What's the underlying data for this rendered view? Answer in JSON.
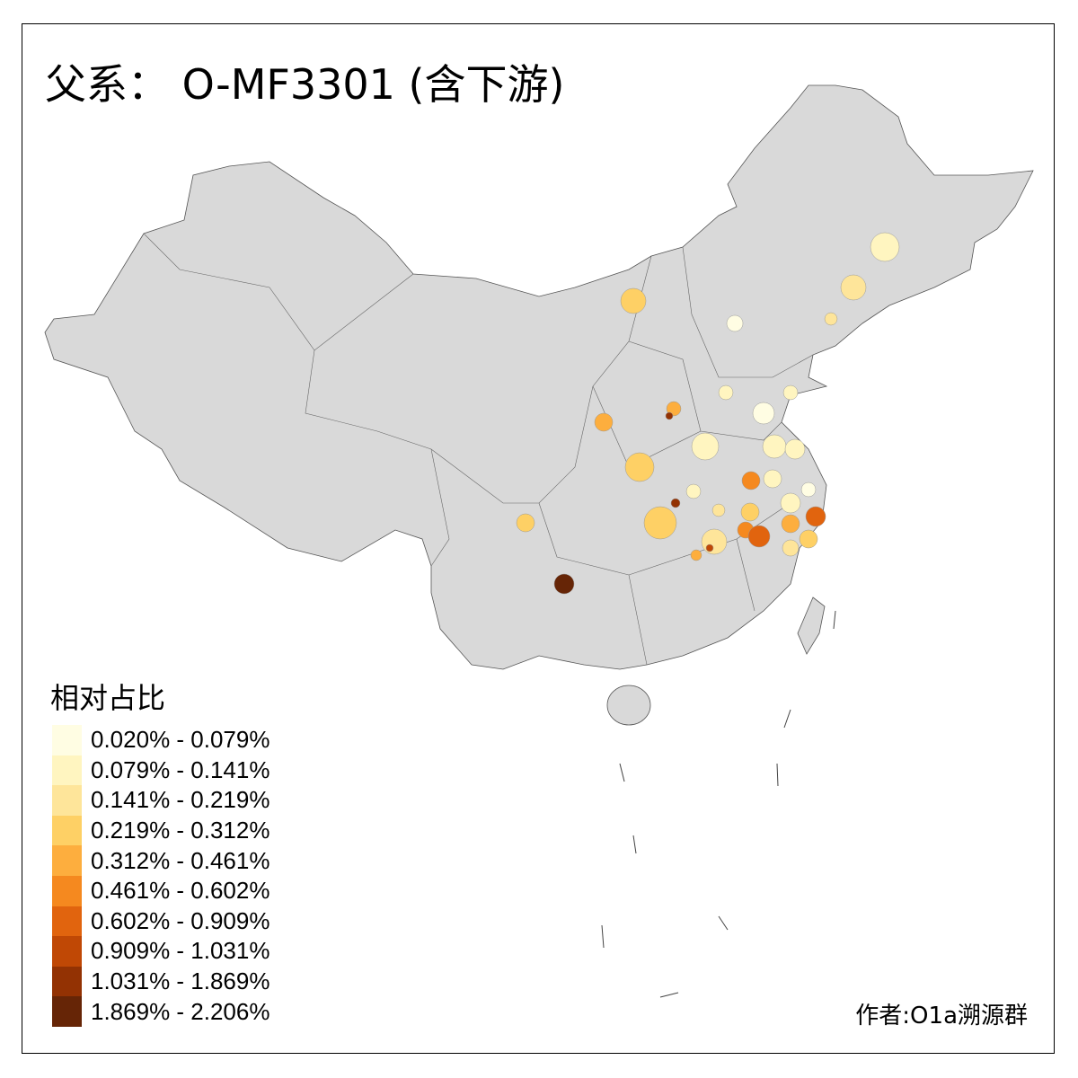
{
  "title": "父系： O-MF3301 (含下游)",
  "legend": {
    "title": "相对占比",
    "classes": [
      {
        "label": "0.020% - 0.079%",
        "color": "#FFFDE3"
      },
      {
        "label": "0.079% - 0.141%",
        "color": "#FFF5C0"
      },
      {
        "label": "0.141% - 0.219%",
        "color": "#FEE59A"
      },
      {
        "label": "0.219% - 0.312%",
        "color": "#FED065"
      },
      {
        "label": "0.312% - 0.461%",
        "color": "#FDAE3E"
      },
      {
        "label": "0.461% - 0.602%",
        "color": "#F5891F"
      },
      {
        "label": "0.602% - 0.909%",
        "color": "#E1640E"
      },
      {
        "label": "0.909% - 1.031%",
        "color": "#C04805"
      },
      {
        "label": "1.031% - 1.869%",
        "color": "#933203"
      },
      {
        "label": "1.869% - 2.206%",
        "color": "#662506"
      }
    ]
  },
  "base_color": "#D9D9D9",
  "author": "作者:O1a溯源群"
}
